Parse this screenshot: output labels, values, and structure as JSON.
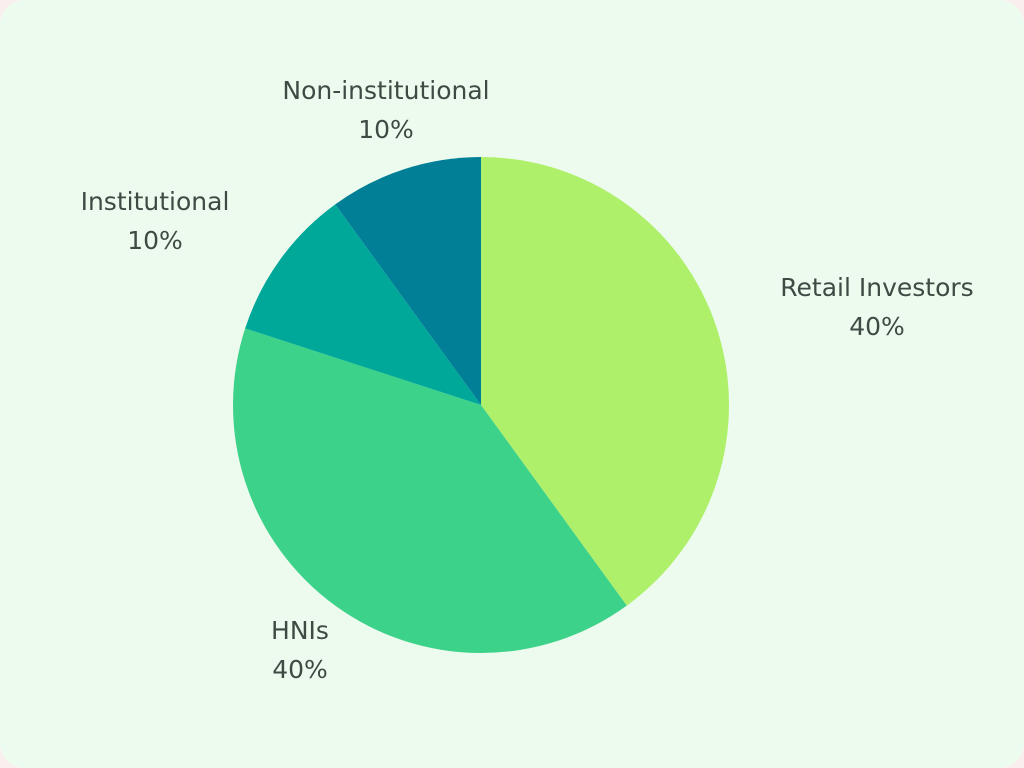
{
  "chart_data": {
    "type": "pie",
    "categories": [
      "Retail Investors",
      "HNIs",
      "Institutional",
      "Non-institutional"
    ],
    "values": [
      40,
      40,
      10,
      10
    ],
    "value_labels": [
      "40%",
      "40%",
      "10%",
      "10%"
    ],
    "colors": [
      "#aef06a",
      "#3dd28a",
      "#00a89a",
      "#007f97"
    ]
  }
}
